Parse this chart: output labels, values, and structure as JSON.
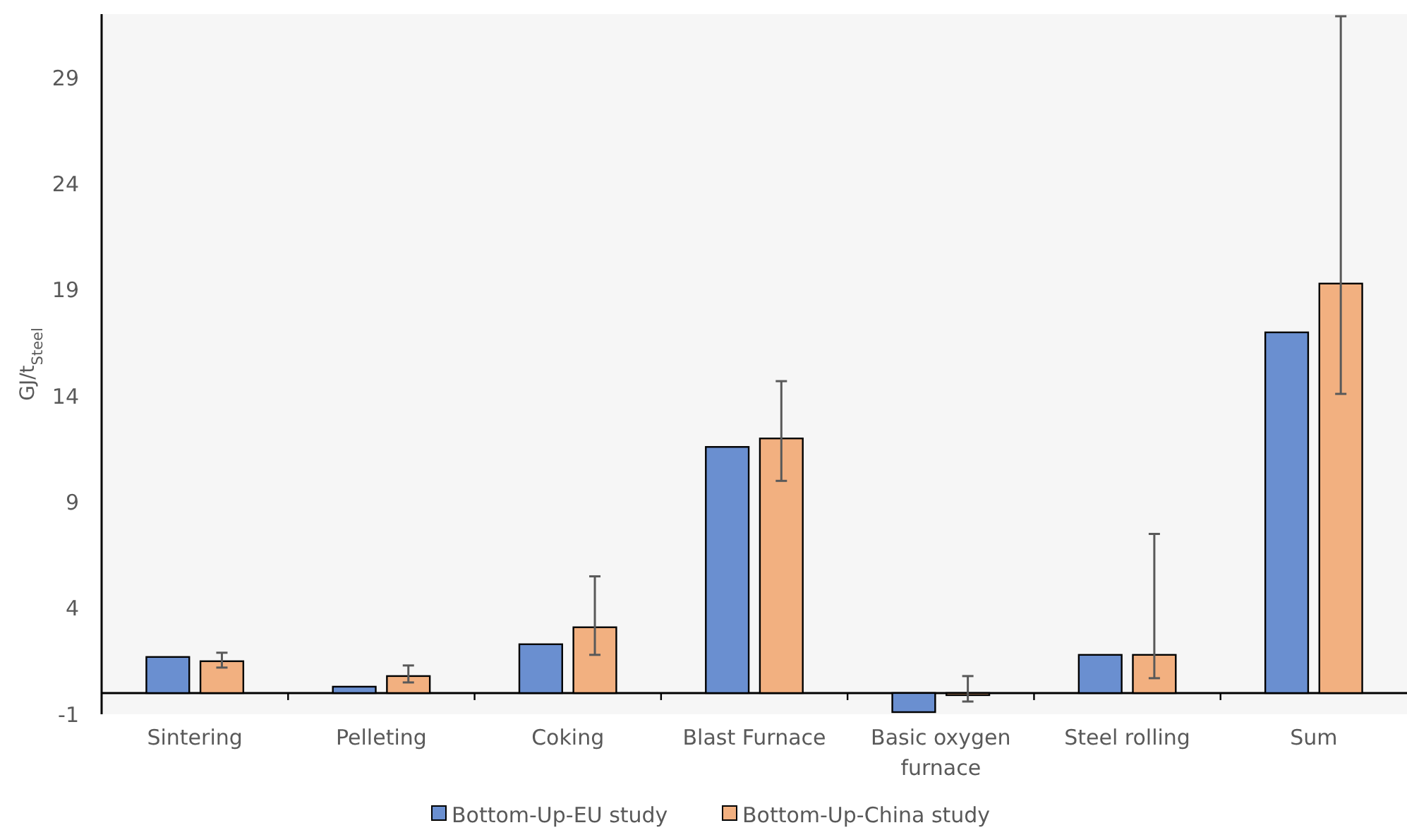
{
  "chart_data": {
    "type": "bar",
    "ylabel": "GJ/t$_{Steel}$",
    "categories": [
      "Sintering",
      "Pelleting",
      "Coking",
      "Blast Furnace",
      "Basic oxygen furnace",
      "Steel rolling",
      "Sum"
    ],
    "series": [
      {
        "name": "Bottom-Up-EU study",
        "color": "#6a8fd0",
        "values": [
          1.7,
          0.3,
          2.3,
          11.6,
          -0.9,
          1.8,
          17.0
        ]
      },
      {
        "name": "Bottom-Up-China study",
        "color": "#f2b080",
        "values": [
          1.5,
          0.8,
          3.1,
          12.0,
          -0.1,
          1.8,
          19.3
        ],
        "errors": [
          [
            1.2,
            1.9
          ],
          [
            0.5,
            1.3
          ],
          [
            1.8,
            5.5
          ],
          [
            10.0,
            14.7
          ],
          [
            -0.4,
            0.8
          ],
          [
            0.7,
            7.5
          ],
          [
            14.1,
            31.9
          ]
        ]
      }
    ],
    "ylim": [
      -1,
      32
    ],
    "yticks": [
      -1,
      4,
      9,
      14,
      19,
      24,
      29
    ],
    "grid": false,
    "legend": "bottom"
  }
}
